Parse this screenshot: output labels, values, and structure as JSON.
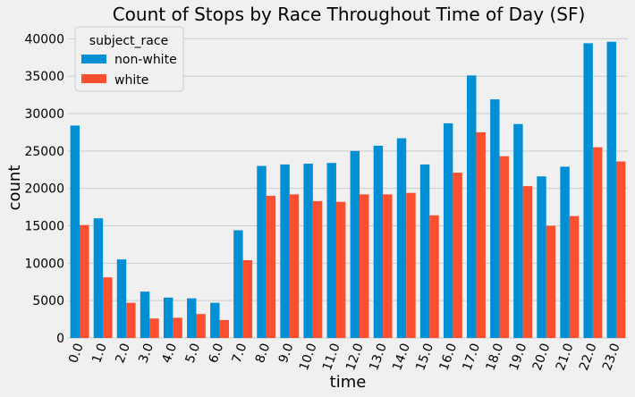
{
  "chart_data": {
    "type": "bar",
    "title": "Count of Stops by Race Throughout Time of Day (SF)",
    "xlabel": "time",
    "ylabel": "count",
    "categories": [
      "0.0",
      "1.0",
      "2.0",
      "3.0",
      "4.0",
      "5.0",
      "6.0",
      "7.0",
      "8.0",
      "9.0",
      "10.0",
      "11.0",
      "12.0",
      "13.0",
      "14.0",
      "15.0",
      "16.0",
      "17.0",
      "18.0",
      "19.0",
      "20.0",
      "21.0",
      "22.0",
      "23.0"
    ],
    "ylim": [
      0,
      41000
    ],
    "yticks": [
      0,
      5000,
      10000,
      15000,
      20000,
      25000,
      30000,
      35000,
      40000
    ],
    "grid": true,
    "legend": {
      "title": "subject_race",
      "placement": "top-left"
    },
    "series": [
      {
        "name": "non-white",
        "color": "#008fd5",
        "values": [
          28400,
          16000,
          10500,
          6200,
          5400,
          5300,
          4700,
          14400,
          23000,
          23200,
          23300,
          23400,
          25000,
          25700,
          26700,
          23200,
          28700,
          35100,
          31900,
          28600,
          21600,
          22900,
          39400,
          39600
        ]
      },
      {
        "name": "white",
        "color": "#fc4f30",
        "values": [
          15100,
          8100,
          4700,
          2600,
          2700,
          3200,
          2400,
          10400,
          19000,
          19200,
          18300,
          18200,
          19200,
          19200,
          19400,
          16400,
          22100,
          27500,
          24300,
          20300,
          15000,
          16300,
          25500,
          23600
        ]
      }
    ]
  }
}
